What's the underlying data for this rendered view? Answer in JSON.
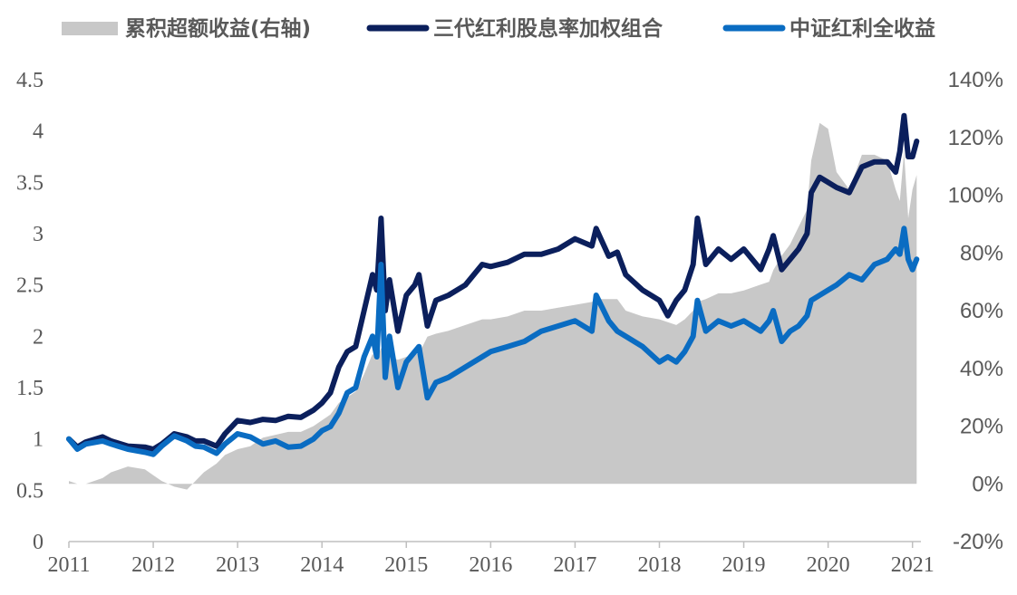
{
  "chart_data": {
    "type": "line",
    "title": "",
    "legend": [
      {
        "name": "累积超额收益(右轴)",
        "kind": "area",
        "color": "#c8c8c8"
      },
      {
        "name": "三代红利股息率加权组合",
        "kind": "line",
        "color": "#0b1f5c"
      },
      {
        "name": "中证红利全收益",
        "kind": "line",
        "color": "#0a6cc2"
      }
    ],
    "legend_position": "top",
    "x_ticks": [
      "2011",
      "2012",
      "2013",
      "2014",
      "2015",
      "2016",
      "2017",
      "2018",
      "2019",
      "2020",
      "2021"
    ],
    "x_range": [
      2011.0,
      2021.1
    ],
    "y_left": {
      "min": 0,
      "max": 4.5,
      "ticks": [
        "0",
        "0.5",
        "1",
        "1.5",
        "2",
        "2.5",
        "3",
        "3.5",
        "4",
        "4.5"
      ]
    },
    "y_right": {
      "min": -20,
      "max": 140,
      "ticks": [
        "-20%",
        "0%",
        "20%",
        "40%",
        "60%",
        "80%",
        "100%",
        "120%",
        "140%"
      ]
    },
    "series": [
      {
        "name": "三代红利股息率加权组合",
        "axis": "left",
        "x": [
          2011.0,
          2011.1,
          2011.2,
          2011.4,
          2011.5,
          2011.7,
          2011.9,
          2012.0,
          2012.1,
          2012.25,
          2012.4,
          2012.5,
          2012.6,
          2012.75,
          2012.85,
          2013.0,
          2013.15,
          2013.3,
          2013.45,
          2013.6,
          2013.75,
          2013.9,
          2014.0,
          2014.1,
          2014.2,
          2014.3,
          2014.4,
          2014.5,
          2014.6,
          2014.65,
          2014.7,
          2014.75,
          2014.8,
          2014.9,
          2015.0,
          2015.1,
          2015.15,
          2015.25,
          2015.35,
          2015.5,
          2015.7,
          2015.9,
          2016.0,
          2016.2,
          2016.4,
          2016.6,
          2016.8,
          2017.0,
          2017.2,
          2017.25,
          2017.4,
          2017.5,
          2017.6,
          2017.8,
          2018.0,
          2018.1,
          2018.2,
          2018.3,
          2018.4,
          2018.45,
          2018.55,
          2018.7,
          2018.85,
          2019.0,
          2019.2,
          2019.3,
          2019.35,
          2019.45,
          2019.55,
          2019.65,
          2019.75,
          2019.8,
          2019.9,
          2020.0,
          2020.1,
          2020.25,
          2020.4,
          2020.55,
          2020.7,
          2020.8,
          2020.85,
          2020.9,
          2020.95,
          2021.0,
          2021.05
        ],
        "values": [
          1.0,
          0.92,
          0.97,
          1.02,
          0.98,
          0.93,
          0.92,
          0.9,
          0.95,
          1.05,
          1.02,
          0.98,
          0.98,
          0.93,
          1.05,
          1.18,
          1.16,
          1.19,
          1.18,
          1.22,
          1.21,
          1.28,
          1.35,
          1.45,
          1.7,
          1.85,
          1.9,
          2.25,
          2.6,
          2.45,
          3.15,
          2.25,
          2.55,
          2.05,
          2.4,
          2.5,
          2.6,
          2.1,
          2.35,
          2.4,
          2.5,
          2.7,
          2.68,
          2.72,
          2.8,
          2.8,
          2.85,
          2.95,
          2.88,
          3.05,
          2.78,
          2.82,
          2.6,
          2.45,
          2.35,
          2.2,
          2.35,
          2.45,
          2.7,
          3.15,
          2.7,
          2.85,
          2.75,
          2.85,
          2.65,
          2.85,
          2.98,
          2.65,
          2.75,
          2.85,
          3.0,
          3.4,
          3.55,
          3.5,
          3.45,
          3.4,
          3.65,
          3.7,
          3.7,
          3.6,
          3.8,
          4.15,
          3.75,
          3.75,
          3.9
        ]
      },
      {
        "name": "中证红利全收益",
        "axis": "left",
        "x": [
          2011.0,
          2011.1,
          2011.2,
          2011.4,
          2011.5,
          2011.7,
          2011.9,
          2012.0,
          2012.1,
          2012.25,
          2012.4,
          2012.5,
          2012.6,
          2012.75,
          2012.85,
          2013.0,
          2013.15,
          2013.3,
          2013.45,
          2013.6,
          2013.75,
          2013.9,
          2014.0,
          2014.1,
          2014.2,
          2014.3,
          2014.4,
          2014.5,
          2014.6,
          2014.65,
          2014.7,
          2014.75,
          2014.8,
          2014.9,
          2015.0,
          2015.1,
          2015.15,
          2015.25,
          2015.35,
          2015.5,
          2015.7,
          2015.9,
          2016.0,
          2016.2,
          2016.4,
          2016.6,
          2016.8,
          2017.0,
          2017.2,
          2017.25,
          2017.4,
          2017.5,
          2017.6,
          2017.8,
          2018.0,
          2018.1,
          2018.2,
          2018.3,
          2018.4,
          2018.45,
          2018.55,
          2018.7,
          2018.85,
          2019.0,
          2019.2,
          2019.3,
          2019.35,
          2019.45,
          2019.55,
          2019.65,
          2019.75,
          2019.8,
          2019.9,
          2020.0,
          2020.1,
          2020.25,
          2020.4,
          2020.55,
          2020.7,
          2020.8,
          2020.85,
          2020.9,
          2020.95,
          2021.0,
          2021.05
        ],
        "values": [
          1.0,
          0.9,
          0.95,
          0.98,
          0.95,
          0.9,
          0.87,
          0.85,
          0.93,
          1.03,
          0.98,
          0.93,
          0.92,
          0.86,
          0.95,
          1.05,
          1.02,
          0.95,
          0.98,
          0.92,
          0.93,
          1.0,
          1.08,
          1.12,
          1.25,
          1.45,
          1.5,
          1.8,
          2.0,
          1.8,
          2.7,
          1.6,
          2.0,
          1.5,
          1.75,
          1.85,
          1.9,
          1.4,
          1.55,
          1.6,
          1.7,
          1.8,
          1.85,
          1.9,
          1.95,
          2.05,
          2.1,
          2.15,
          2.05,
          2.4,
          2.15,
          2.05,
          2.0,
          1.9,
          1.75,
          1.8,
          1.75,
          1.85,
          2.0,
          2.35,
          2.05,
          2.15,
          2.1,
          2.15,
          2.05,
          2.15,
          2.25,
          1.95,
          2.05,
          2.1,
          2.2,
          2.35,
          2.4,
          2.45,
          2.5,
          2.6,
          2.55,
          2.7,
          2.75,
          2.85,
          2.8,
          3.05,
          2.75,
          2.65,
          2.75
        ]
      },
      {
        "name": "累积超额收益(右轴)",
        "axis": "right",
        "x": [
          2011.0,
          2011.1,
          2011.2,
          2011.4,
          2011.5,
          2011.7,
          2011.9,
          2012.0,
          2012.1,
          2012.25,
          2012.4,
          2012.5,
          2012.6,
          2012.75,
          2012.85,
          2013.0,
          2013.15,
          2013.3,
          2013.45,
          2013.6,
          2013.75,
          2013.9,
          2014.0,
          2014.1,
          2014.2,
          2014.3,
          2014.4,
          2014.5,
          2014.6,
          2014.65,
          2014.7,
          2014.75,
          2014.8,
          2014.9,
          2015.0,
          2015.1,
          2015.15,
          2015.25,
          2015.35,
          2015.5,
          2015.7,
          2015.9,
          2016.0,
          2016.2,
          2016.4,
          2016.6,
          2016.8,
          2017.0,
          2017.2,
          2017.25,
          2017.4,
          2017.5,
          2017.6,
          2017.8,
          2018.0,
          2018.1,
          2018.2,
          2018.3,
          2018.4,
          2018.45,
          2018.55,
          2018.7,
          2018.85,
          2019.0,
          2019.2,
          2019.3,
          2019.35,
          2019.45,
          2019.55,
          2019.65,
          2019.75,
          2019.8,
          2019.9,
          2020.0,
          2020.1,
          2020.25,
          2020.4,
          2020.55,
          2020.7,
          2020.8,
          2020.85,
          2020.9,
          2020.95,
          2021.0,
          2021.05
        ],
        "values": [
          1,
          0,
          0,
          2,
          4,
          6,
          5,
          3,
          1,
          -1,
          -2,
          1,
          4,
          7,
          10,
          12,
          13,
          16,
          17,
          18,
          18,
          20,
          22,
          24,
          28,
          30,
          32,
          38,
          45,
          43,
          47,
          45,
          44,
          43,
          44,
          45,
          45,
          51,
          52,
          53,
          55,
          57,
          57,
          58,
          60,
          60,
          61,
          62,
          63,
          64,
          64,
          64,
          60,
          58,
          57,
          56,
          55,
          57,
          60,
          63,
          64,
          66,
          66,
          67,
          69,
          70,
          74,
          79,
          83,
          89,
          95,
          112,
          125,
          123,
          108,
          102,
          114,
          114,
          112,
          102,
          98,
          115,
          92,
          102,
          107
        ]
      }
    ]
  }
}
